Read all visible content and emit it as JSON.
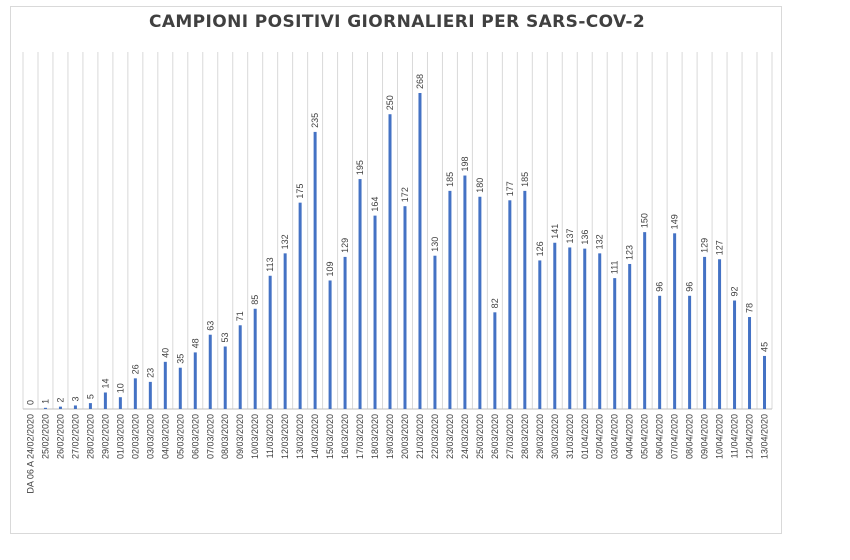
{
  "chart_data": {
    "type": "bar",
    "title": "CAMPIONI POSITIVI GIORNALIERI PER SARS-COV-2",
    "categories": [
      "DA 06 A 24/02/2020",
      "25/02/2020",
      "26/02/2020",
      "27/02/2020",
      "28/02/2020",
      "29/02/2020",
      "01/03/2020",
      "02/03/2020",
      "03/03/2020",
      "04/03/2020",
      "05/03/2020",
      "06/03/2020",
      "07/03/2020",
      "08/03/2020",
      "09/03/2020",
      "10/03/2020",
      "11/03/2020",
      "12/03/2020",
      "13/03/2020",
      "14/03/2020",
      "15/03/2020",
      "16/03/2020",
      "17/03/2020",
      "18/03/2020",
      "19/03/2020",
      "20/03/2020",
      "21/03/2020",
      "22/03/2020",
      "23/03/2020",
      "24/03/2020",
      "25/03/2020",
      "26/03/2020",
      "27/03/2020",
      "28/03/2020",
      "29/03/2020",
      "30/03/2020",
      "31/03/2020",
      "01/04/2020",
      "02/04/2020",
      "03/04/2020",
      "04/04/2020",
      "05/04/2020",
      "06/04/2020",
      "07/04/2020",
      "08/04/2020",
      "09/04/2020",
      "10/04/2020",
      "11/04/2020",
      "12/04/2020",
      "13/04/2020"
    ],
    "values": [
      0,
      1,
      2,
      3,
      5,
      14,
      10,
      26,
      23,
      40,
      35,
      48,
      63,
      53,
      71,
      85,
      113,
      132,
      175,
      235,
      109,
      129,
      195,
      164,
      250,
      172,
      268,
      130,
      185,
      198,
      180,
      82,
      177,
      185,
      126,
      141,
      137,
      136,
      132,
      111,
      123,
      150,
      96,
      149,
      96,
      129,
      127,
      92,
      78,
      45
    ],
    "ylim": [
      0,
      268
    ],
    "grid": "vertical",
    "bar_color": "#4472c4",
    "gridline_color": "#d9d9d9"
  }
}
